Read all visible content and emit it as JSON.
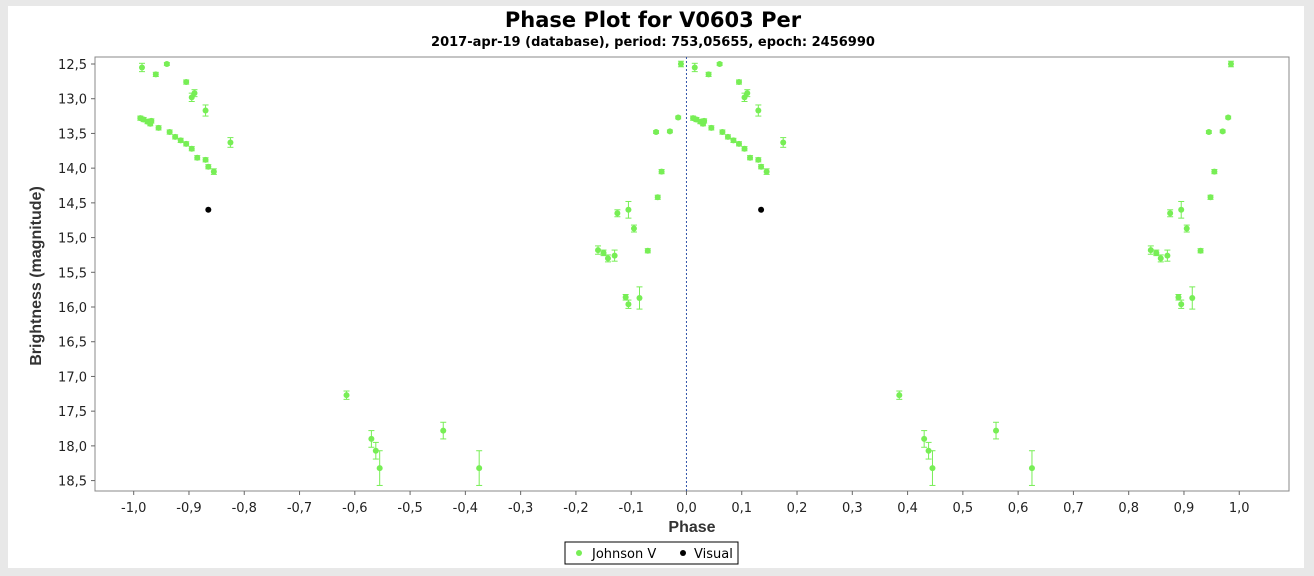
{
  "chart_data": {
    "type": "scatter",
    "title": "Phase Plot for V0603 Per",
    "subtitle": "2017-apr-19 (database), period: 753,05655, epoch: 2456990",
    "xlabel": "Phase",
    "ylabel": "Brightness (magnitude)",
    "xlim": [
      -1.07,
      1.09
    ],
    "ylim": [
      12.5,
      18.65
    ],
    "y_inverted": true,
    "decimal_separator": ",",
    "x_ticks": [
      "-1,0",
      "-0,9",
      "-0,8",
      "-0,7",
      "-0,6",
      "-0,5",
      "-0,4",
      "-0,3",
      "-0,2",
      "-0,1",
      "0,0",
      "0,1",
      "0,2",
      "0,3",
      "0,4",
      "0,5",
      "0,6",
      "0,7",
      "0,8",
      "0,9",
      "1,0"
    ],
    "y_ticks": [
      "12,5",
      "13,0",
      "13,5",
      "14,0",
      "14,5",
      "15,0",
      "15,5",
      "16,0",
      "16,5",
      "17,0",
      "17,5",
      "18,0",
      "18,5"
    ],
    "zero_line": true,
    "legend_position": "bottom",
    "series": [
      {
        "name": "Johnson V",
        "color": "#77ee55",
        "marker": "circle",
        "points": [
          [
            -0.985,
            12.55,
            0.06
          ],
          [
            -0.96,
            12.65,
            0.03
          ],
          [
            -0.94,
            12.5,
            0.02
          ],
          [
            -0.905,
            12.76,
            0.03
          ],
          [
            -0.895,
            12.98,
            0.06
          ],
          [
            -0.89,
            12.92,
            0.05
          ],
          [
            -0.87,
            13.17,
            0.08
          ],
          [
            -0.825,
            13.63,
            0.07
          ],
          [
            -0.988,
            13.28,
            0.03
          ],
          [
            -0.982,
            13.3,
            0.03
          ],
          [
            -0.975,
            13.33,
            0.03
          ],
          [
            -0.97,
            13.36,
            0.03
          ],
          [
            -0.968,
            13.32,
            0.03
          ],
          [
            -0.955,
            13.42,
            0.03
          ],
          [
            -0.935,
            13.48,
            0.03
          ],
          [
            -0.925,
            13.55,
            0.03
          ],
          [
            -0.915,
            13.6,
            0.03
          ],
          [
            -0.905,
            13.65,
            0.03
          ],
          [
            -0.895,
            13.72,
            0.03
          ],
          [
            -0.885,
            13.85,
            0.03
          ],
          [
            -0.87,
            13.88,
            0.03
          ],
          [
            -0.865,
            13.98,
            0.03
          ],
          [
            -0.855,
            14.05,
            0.04
          ],
          [
            -0.615,
            17.27,
            0.06
          ],
          [
            -0.57,
            17.9,
            0.12
          ],
          [
            -0.562,
            18.07,
            0.12
          ],
          [
            -0.555,
            18.32,
            0.25
          ],
          [
            -0.44,
            17.78,
            0.12
          ],
          [
            -0.375,
            18.32,
            0.25
          ],
          [
            -0.16,
            15.18,
            0.06
          ],
          [
            -0.15,
            15.22,
            0.04
          ],
          [
            -0.142,
            15.3,
            0.05
          ],
          [
            -0.13,
            15.26,
            0.08
          ],
          [
            -0.125,
            14.65,
            0.05
          ],
          [
            -0.105,
            14.6,
            0.12
          ],
          [
            -0.095,
            14.87,
            0.05
          ],
          [
            -0.085,
            15.87,
            0.16
          ],
          [
            -0.07,
            15.19,
            0.03
          ],
          [
            -0.11,
            15.86,
            0.04
          ],
          [
            -0.105,
            15.96,
            0.06
          ],
          [
            -0.055,
            13.48,
            0.02
          ],
          [
            -0.052,
            14.42,
            0.03
          ],
          [
            -0.045,
            14.05,
            0.03
          ],
          [
            -0.03,
            13.47,
            0.02
          ],
          [
            -0.015,
            13.27,
            0.02
          ],
          [
            -0.01,
            12.5,
            0.04
          ],
          [
            0.015,
            12.55,
            0.06
          ],
          [
            0.04,
            12.65,
            0.03
          ],
          [
            0.06,
            12.5,
            0.02
          ],
          [
            0.095,
            12.76,
            0.03
          ],
          [
            0.105,
            12.98,
            0.06
          ],
          [
            0.11,
            12.92,
            0.05
          ],
          [
            0.13,
            13.17,
            0.08
          ],
          [
            0.175,
            13.63,
            0.07
          ],
          [
            0.012,
            13.28,
            0.03
          ],
          [
            0.018,
            13.3,
            0.03
          ],
          [
            0.025,
            13.33,
            0.03
          ],
          [
            0.03,
            13.36,
            0.03
          ],
          [
            0.032,
            13.32,
            0.03
          ],
          [
            0.045,
            13.42,
            0.03
          ],
          [
            0.065,
            13.48,
            0.03
          ],
          [
            0.075,
            13.55,
            0.03
          ],
          [
            0.085,
            13.6,
            0.03
          ],
          [
            0.095,
            13.65,
            0.03
          ],
          [
            0.105,
            13.72,
            0.03
          ],
          [
            0.115,
            13.85,
            0.03
          ],
          [
            0.13,
            13.88,
            0.03
          ],
          [
            0.135,
            13.98,
            0.03
          ],
          [
            0.145,
            14.05,
            0.04
          ],
          [
            0.385,
            17.27,
            0.06
          ],
          [
            0.43,
            17.9,
            0.12
          ],
          [
            0.438,
            18.07,
            0.12
          ],
          [
            0.445,
            18.32,
            0.25
          ],
          [
            0.56,
            17.78,
            0.12
          ],
          [
            0.625,
            18.32,
            0.25
          ],
          [
            0.84,
            15.18,
            0.06
          ],
          [
            0.85,
            15.22,
            0.04
          ],
          [
            0.858,
            15.3,
            0.05
          ],
          [
            0.87,
            15.26,
            0.08
          ],
          [
            0.875,
            14.65,
            0.05
          ],
          [
            0.895,
            14.6,
            0.12
          ],
          [
            0.905,
            14.87,
            0.05
          ],
          [
            0.915,
            15.87,
            0.16
          ],
          [
            0.93,
            15.19,
            0.03
          ],
          [
            0.89,
            15.86,
            0.04
          ],
          [
            0.895,
            15.96,
            0.06
          ],
          [
            0.945,
            13.48,
            0.02
          ],
          [
            0.948,
            14.42,
            0.03
          ],
          [
            0.955,
            14.05,
            0.03
          ],
          [
            0.97,
            13.47,
            0.02
          ],
          [
            0.98,
            13.27,
            0.02
          ],
          [
            0.985,
            12.5,
            0.04
          ]
        ]
      },
      {
        "name": "Visual",
        "color": "#000000",
        "marker": "circle",
        "points": [
          [
            -0.865,
            14.6,
            0
          ],
          [
            0.135,
            14.6,
            0
          ]
        ]
      }
    ]
  }
}
